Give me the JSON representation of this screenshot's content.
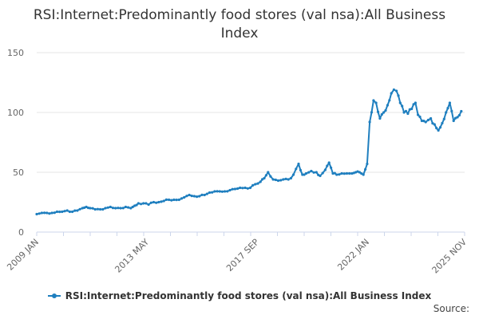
{
  "chart_data": {
    "type": "line",
    "title": "RSI:Internet:Predominantly food stores (val nsa):All Business Index",
    "xlabel": "",
    "ylabel": "",
    "ylim": [
      0,
      150
    ],
    "y_ticks": [
      "0",
      "50",
      "100",
      "150"
    ],
    "x_ticks": [
      {
        "label": "2009 JAN",
        "x": 2009.0
      },
      {
        "label": "2013 MAY",
        "x": 2013.333
      },
      {
        "label": "2017 SEP",
        "x": 2017.667
      },
      {
        "label": "2022 JAN",
        "x": 2022.0
      },
      {
        "label": "2025 NOV",
        "x": 2025.833
      }
    ],
    "x_range": [
      2009.0,
      2025.833
    ],
    "grid": "horizontal",
    "legend_position": "bottom",
    "series": [
      {
        "name": "RSI:Internet:Predominantly food stores (val nsa):All Business Index",
        "color": "#1f7fbf",
        "points": [
          [
            2009.0,
            15
          ],
          [
            2009.2,
            16
          ],
          [
            2009.4,
            16
          ],
          [
            2009.6,
            16
          ],
          [
            2009.8,
            17
          ],
          [
            2010.0,
            17
          ],
          [
            2010.2,
            18
          ],
          [
            2010.4,
            17
          ],
          [
            2010.6,
            18
          ],
          [
            2010.8,
            20
          ],
          [
            2010.95,
            21
          ],
          [
            2011.1,
            20
          ],
          [
            2011.3,
            19
          ],
          [
            2011.5,
            19
          ],
          [
            2011.7,
            20
          ],
          [
            2011.9,
            21
          ],
          [
            2012.1,
            20
          ],
          [
            2012.3,
            20
          ],
          [
            2012.5,
            21
          ],
          [
            2012.7,
            20
          ],
          [
            2012.85,
            22
          ],
          [
            2013.0,
            24
          ],
          [
            2013.2,
            24
          ],
          [
            2013.4,
            23
          ],
          [
            2013.6,
            25
          ],
          [
            2013.8,
            25
          ],
          [
            2014.0,
            26
          ],
          [
            2014.2,
            27
          ],
          [
            2014.4,
            27
          ],
          [
            2014.6,
            27
          ],
          [
            2014.8,
            29
          ],
          [
            2015.0,
            31
          ],
          [
            2015.2,
            30
          ],
          [
            2015.4,
            30
          ],
          [
            2015.6,
            31
          ],
          [
            2015.8,
            33
          ],
          [
            2016.0,
            34
          ],
          [
            2016.2,
            34
          ],
          [
            2016.4,
            34
          ],
          [
            2016.6,
            35
          ],
          [
            2016.8,
            36
          ],
          [
            2017.0,
            37
          ],
          [
            2017.2,
            37
          ],
          [
            2017.4,
            37
          ],
          [
            2017.6,
            40
          ],
          [
            2017.8,
            42
          ],
          [
            2017.95,
            45
          ],
          [
            2018.1,
            50
          ],
          [
            2018.3,
            44
          ],
          [
            2018.5,
            43
          ],
          [
            2018.7,
            44
          ],
          [
            2018.9,
            44
          ],
          [
            2019.0,
            45
          ],
          [
            2019.1,
            48
          ],
          [
            2019.3,
            57
          ],
          [
            2019.45,
            48
          ],
          [
            2019.6,
            49
          ],
          [
            2019.8,
            51
          ],
          [
            2020.0,
            50
          ],
          [
            2020.15,
            47
          ],
          [
            2020.35,
            52
          ],
          [
            2020.5,
            58
          ],
          [
            2020.65,
            49
          ],
          [
            2020.8,
            48
          ],
          [
            2021.0,
            49
          ],
          [
            2021.2,
            49
          ],
          [
            2021.4,
            49
          ],
          [
            2021.55,
            50
          ],
          [
            2021.7,
            50
          ],
          [
            2021.85,
            48
          ],
          [
            2022.0,
            57
          ],
          [
            2022.1,
            92
          ],
          [
            2022.25,
            110
          ],
          [
            2022.35,
            108
          ],
          [
            2022.5,
            95
          ],
          [
            2022.65,
            100
          ],
          [
            2022.8,
            106
          ],
          [
            2022.95,
            116
          ],
          [
            2023.05,
            119
          ],
          [
            2023.15,
            118
          ],
          [
            2023.3,
            108
          ],
          [
            2023.45,
            100
          ],
          [
            2023.6,
            99
          ],
          [
            2023.75,
            103
          ],
          [
            2023.9,
            108
          ],
          [
            2024.0,
            98
          ],
          [
            2024.15,
            93
          ],
          [
            2024.3,
            92
          ],
          [
            2024.5,
            95
          ],
          [
            2024.65,
            90
          ],
          [
            2024.8,
            85
          ],
          [
            2024.95,
            91
          ],
          [
            2025.1,
            100
          ],
          [
            2025.25,
            108
          ],
          [
            2025.4,
            93
          ],
          [
            2025.55,
            96
          ],
          [
            2025.7,
            101
          ]
        ]
      }
    ]
  },
  "legend": {
    "label": "RSI:Internet:Predominantly food stores (val nsa):All Business Index"
  },
  "footer": {
    "source": "Source:"
  }
}
